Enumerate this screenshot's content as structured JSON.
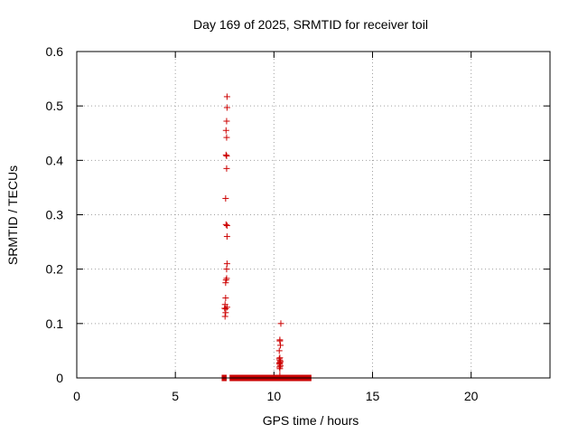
{
  "chart_data": {
    "type": "scatter",
    "title": "Day 169 of 2025, SRMTID for receiver toil",
    "xlabel": "GPS time / hours",
    "ylabel": "SRMTID / TECUs",
    "xlim": [
      0,
      24
    ],
    "ylim": [
      0,
      0.6
    ],
    "xticks": [
      0,
      5,
      10,
      15,
      20
    ],
    "xtick_labels": [
      "0",
      "5",
      "10",
      "15",
      "20"
    ],
    "yticks": [
      0,
      0.1,
      0.2,
      0.3,
      0.4,
      0.5,
      0.6
    ],
    "ytick_labels": [
      "0",
      "0.1",
      "0.2",
      "0.3",
      "0.4",
      "0.5",
      "0.6"
    ],
    "grid": true,
    "marker": "+",
    "marker_color": "#cc0000",
    "series": [
      {
        "x": [
          7.62,
          7.62,
          7.6,
          7.57,
          7.6,
          7.57,
          7.6,
          7.6,
          7.55,
          7.57,
          7.62,
          7.62,
          7.62,
          7.6,
          7.6,
          7.57,
          7.55,
          7.55,
          7.62,
          7.52,
          7.55,
          7.5,
          7.55,
          7.52,
          10.35,
          10.3,
          10.3,
          10.33,
          10.27,
          10.3,
          10.27,
          10.3,
          10.33,
          10.3,
          10.27,
          10.3,
          10.33,
          10.28,
          10.3,
          10.3,
          7.4,
          7.45,
          7.5,
          7.55,
          7.9,
          8.1,
          8.3,
          8.5,
          8.7,
          8.9,
          9.1,
          9.3,
          9.5,
          9.7,
          9.9,
          10.1,
          10.3,
          10.5,
          10.7,
          10.9,
          11.1,
          11.3,
          11.5,
          11.7,
          11.85
        ],
        "y": [
          0.517,
          0.497,
          0.472,
          0.455,
          0.442,
          0.41,
          0.408,
          0.385,
          0.33,
          0.282,
          0.28,
          0.26,
          0.21,
          0.2,
          0.183,
          0.18,
          0.175,
          0.147,
          0.13,
          0.135,
          0.127,
          0.128,
          0.12,
          0.113,
          0.1,
          0.07,
          0.068,
          0.06,
          0.05,
          0.037,
          0.035,
          0.032,
          0.03,
          0.028,
          0.027,
          0.025,
          0.022,
          0.02,
          0.017,
          0.005,
          0,
          0,
          0,
          0,
          0,
          0,
          0,
          0,
          0,
          0,
          0,
          0,
          0,
          0,
          0,
          0,
          0,
          0,
          0,
          0,
          0,
          0,
          0,
          0,
          0
        ]
      }
    ]
  }
}
